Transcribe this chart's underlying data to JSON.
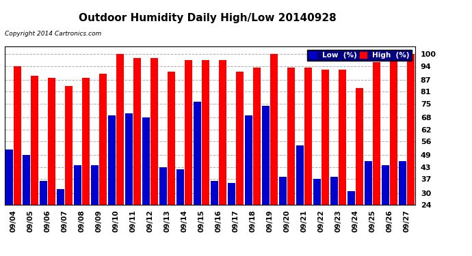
{
  "title": "Outdoor Humidity Daily High/Low 20140928",
  "copyright": "Copyright 2014 Cartronics.com",
  "background_color": "#ffffff",
  "plot_bg_color": "#ffffff",
  "bar_color_high": "#ff0000",
  "bar_color_low": "#0000cc",
  "yticks": [
    24,
    30,
    37,
    43,
    49,
    56,
    62,
    68,
    75,
    81,
    87,
    94,
    100
  ],
  "ylim": [
    24,
    104
  ],
  "legend_low_label": "Low  (%)",
  "legend_high_label": "High  (%)",
  "dates": [
    "09/04",
    "09/05",
    "09/06",
    "09/07",
    "09/08",
    "09/09",
    "09/10",
    "09/11",
    "09/12",
    "09/13",
    "09/14",
    "09/15",
    "09/16",
    "09/17",
    "09/18",
    "09/19",
    "09/20",
    "09/21",
    "09/22",
    "09/23",
    "09/24",
    "09/25",
    "09/26",
    "09/27"
  ],
  "high": [
    94,
    89,
    88,
    84,
    88,
    90,
    100,
    98,
    98,
    91,
    97,
    97,
    97,
    91,
    93,
    100,
    93,
    93,
    92,
    92,
    83,
    96,
    100,
    100
  ],
  "low": [
    52,
    49,
    36,
    32,
    44,
    44,
    69,
    70,
    68,
    43,
    42,
    76,
    36,
    35,
    69,
    74,
    38,
    54,
    37,
    38,
    31,
    46,
    44,
    46
  ]
}
